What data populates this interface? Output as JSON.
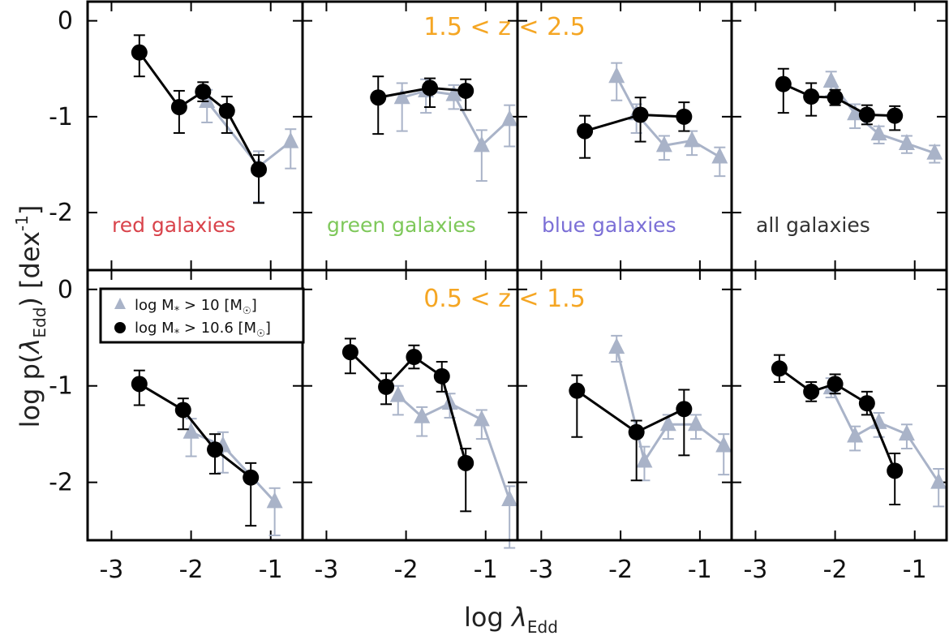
{
  "figure": {
    "ylabel_main": "log p(",
    "ylabel_lambda": "λ",
    "ylabel_sub": "Edd",
    "ylabel_close": ") [dex",
    "ylabel_sup": "-1",
    "ylabel_end": "]",
    "xlabel_main": "log ",
    "xlabel_lambda": "λ",
    "xlabel_sub": "Edd",
    "row_labels": [
      "1.5 < z < 2.5",
      "0.5 < z < 1.5"
    ],
    "legend": [
      {
        "marker": "triangle",
        "main": "log M",
        "sub": "*",
        "rest": " > 10 [M",
        "sun": "☉",
        "close": "]"
      },
      {
        "marker": "circle",
        "main": "log M",
        "sub": "*",
        "rest": " > 10.6 [M",
        "sun": "☉",
        "close": "]"
      }
    ],
    "colors": {
      "black_series": "#000000",
      "grey_series": "#a9b3c8",
      "range_label": "#f5a623"
    }
  },
  "chart_data": [
    {
      "type": "line",
      "row": 0,
      "col": 0,
      "panel_label": "red galaxies",
      "label_color": "#d9434b",
      "xlim": [
        -3.3,
        -0.6
      ],
      "ylim": [
        -2.6,
        0.2
      ],
      "xticks": [
        -3,
        -2,
        -1
      ],
      "yticks": [
        0,
        -1,
        -2
      ],
      "show_xticklabels": false,
      "show_yticklabels": true,
      "series": [
        {
          "name": "log M* > 10.6",
          "marker": "circle",
          "color": "#000000",
          "points": [
            {
              "x": -2.65,
              "y": -0.33,
              "err": [
                0.18,
                0.25
              ]
            },
            {
              "x": -2.15,
              "y": -0.9,
              "err": [
                0.17,
                0.27
              ]
            },
            {
              "x": -1.85,
              "y": -0.74,
              "err": [
                0.1,
                0.1
              ]
            },
            {
              "x": -1.55,
              "y": -0.94,
              "err": [
                0.15,
                0.23
              ]
            },
            {
              "x": -1.15,
              "y": -1.55,
              "err": [
                0.15,
                0.35
              ]
            }
          ]
        },
        {
          "name": "log M* > 10",
          "marker": "triangle",
          "color": "#a9b3c8",
          "points": [
            {
              "x": -1.8,
              "y": -0.84,
              "err": [
                0.12,
                0.22
              ]
            },
            {
              "x": -1.15,
              "y": -1.52,
              "err": [
                0.16,
                0.37
              ]
            },
            {
              "x": -0.75,
              "y": -1.26,
              "err": [
                0.13,
                0.28
              ]
            }
          ]
        }
      ]
    },
    {
      "type": "line",
      "row": 0,
      "col": 1,
      "panel_label": "green galaxies",
      "label_color": "#7ec85a",
      "xlim": [
        -3.3,
        -0.6
      ],
      "ylim": [
        -2.6,
        0.2
      ],
      "xticks": [
        -3,
        -2,
        -1
      ],
      "yticks": [
        0,
        -1,
        -2
      ],
      "show_xticklabels": false,
      "show_yticklabels": false,
      "series": [
        {
          "name": "log M* > 10.6",
          "marker": "circle",
          "color": "#000000",
          "points": [
            {
              "x": -2.35,
              "y": -0.8,
              "err": [
                0.22,
                0.38
              ]
            },
            {
              "x": -1.7,
              "y": -0.7,
              "err": [
                0.1,
                0.2
              ]
            },
            {
              "x": -1.25,
              "y": -0.73,
              "err": [
                0.12,
                0.2
              ]
            }
          ]
        },
        {
          "name": "log M* > 10",
          "marker": "triangle",
          "color": "#a9b3c8",
          "points": [
            {
              "x": -2.05,
              "y": -0.8,
              "err": [
                0.15,
                0.35
              ]
            },
            {
              "x": -1.75,
              "y": -0.73,
              "err": [
                0.12,
                0.23
              ]
            },
            {
              "x": -1.4,
              "y": -0.77,
              "err": [
                0.1,
                0.15
              ]
            },
            {
              "x": -1.05,
              "y": -1.3,
              "err": [
                0.16,
                0.37
              ]
            },
            {
              "x": -0.7,
              "y": -1.03,
              "err": [
                0.15,
                0.28
              ]
            }
          ]
        }
      ]
    },
    {
      "type": "line",
      "row": 0,
      "col": 2,
      "panel_label": "blue galaxies",
      "label_color": "#7b6fd6",
      "xlim": [
        -3.3,
        -0.6
      ],
      "ylim": [
        -2.6,
        0.2
      ],
      "xticks": [
        -3,
        -2,
        -1
      ],
      "yticks": [
        0,
        -1,
        -2
      ],
      "show_xticklabels": false,
      "show_yticklabels": false,
      "series": [
        {
          "name": "log M* > 10.6",
          "marker": "circle",
          "color": "#000000",
          "points": [
            {
              "x": -2.45,
              "y": -1.15,
              "err": [
                0.16,
                0.28
              ]
            },
            {
              "x": -1.75,
              "y": -0.98,
              "err": [
                0.18,
                0.28
              ]
            },
            {
              "x": -1.2,
              "y": -1.0,
              "err": [
                0.15,
                0.15
              ]
            }
          ]
        },
        {
          "name": "log M* > 10",
          "marker": "triangle",
          "color": "#a9b3c8",
          "points": [
            {
              "x": -2.05,
              "y": -0.58,
              "err": [
                0.14,
                0.25
              ]
            },
            {
              "x": -1.8,
              "y": -0.97,
              "err": [
                0.1,
                0.2
              ]
            },
            {
              "x": -1.45,
              "y": -1.3,
              "err": [
                0.1,
                0.15
              ]
            },
            {
              "x": -1.1,
              "y": -1.25,
              "err": [
                0.1,
                0.15
              ]
            },
            {
              "x": -0.75,
              "y": -1.42,
              "err": [
                0.1,
                0.2
              ]
            }
          ]
        }
      ]
    },
    {
      "type": "line",
      "row": 0,
      "col": 3,
      "panel_label": "all galaxies",
      "label_color": "#333333",
      "xlim": [
        -3.3,
        -0.6
      ],
      "ylim": [
        -2.6,
        0.2
      ],
      "xticks": [
        -3,
        -2,
        -1
      ],
      "yticks": [
        0,
        -1,
        -2
      ],
      "show_xticklabels": false,
      "show_yticklabels": false,
      "series": [
        {
          "name": "log M* > 10.6",
          "marker": "circle",
          "color": "#000000",
          "points": [
            {
              "x": -2.65,
              "y": -0.66,
              "err": [
                0.16,
                0.3
              ]
            },
            {
              "x": -2.3,
              "y": -0.79,
              "err": [
                0.14,
                0.2
              ]
            },
            {
              "x": -2.0,
              "y": -0.8,
              "err": [
                0.08,
                0.08
              ]
            },
            {
              "x": -1.6,
              "y": -0.98,
              "err": [
                0.1,
                0.1
              ]
            },
            {
              "x": -1.25,
              "y": -0.99,
              "err": [
                0.1,
                0.15
              ]
            }
          ]
        },
        {
          "name": "log M* > 10",
          "marker": "triangle",
          "color": "#a9b3c8",
          "points": [
            {
              "x": -2.05,
              "y": -0.63,
              "err": [
                0.1,
                0.15
              ]
            },
            {
              "x": -1.75,
              "y": -0.97,
              "err": [
                0.1,
                0.15
              ]
            },
            {
              "x": -1.45,
              "y": -1.18,
              "err": [
                0.08,
                0.1
              ]
            },
            {
              "x": -1.1,
              "y": -1.28,
              "err": [
                0.08,
                0.1
              ]
            },
            {
              "x": -0.75,
              "y": -1.38,
              "err": [
                0.08,
                0.1
              ]
            }
          ]
        }
      ]
    },
    {
      "type": "line",
      "row": 1,
      "col": 0,
      "panel_label": "",
      "label_color": "#d9434b",
      "xlim": [
        -3.3,
        -0.6
      ],
      "ylim": [
        -2.6,
        0.2
      ],
      "xticks": [
        -3,
        -2,
        -1
      ],
      "yticks": [
        0,
        -1,
        -2
      ],
      "show_xticklabels": true,
      "show_yticklabels": true,
      "series": [
        {
          "name": "log M* > 10.6",
          "marker": "circle",
          "color": "#000000",
          "points": [
            {
              "x": -2.65,
              "y": -0.98,
              "err": [
                0.14,
                0.22
              ]
            },
            {
              "x": -2.1,
              "y": -1.25,
              "err": [
                0.12,
                0.2
              ]
            },
            {
              "x": -1.7,
              "y": -1.66,
              "err": [
                0.16,
                0.25
              ]
            },
            {
              "x": -1.25,
              "y": -1.95,
              "err": [
                0.15,
                0.5
              ]
            }
          ]
        },
        {
          "name": "log M* > 10",
          "marker": "triangle",
          "color": "#a9b3c8",
          "points": [
            {
              "x": -2.0,
              "y": -1.48,
              "err": [
                0.14,
                0.25
              ]
            },
            {
              "x": -1.6,
              "y": -1.62,
              "err": [
                0.14,
                0.28
              ]
            },
            {
              "x": -0.95,
              "y": -2.2,
              "err": [
                0.14,
                0.35
              ]
            }
          ]
        }
      ]
    },
    {
      "type": "line",
      "row": 1,
      "col": 1,
      "panel_label": "",
      "label_color": "#7ec85a",
      "xlim": [
        -3.3,
        -0.6
      ],
      "ylim": [
        -2.6,
        0.2
      ],
      "xticks": [
        -3,
        -2,
        -1
      ],
      "yticks": [
        0,
        -1,
        -2
      ],
      "show_xticklabels": true,
      "show_yticklabels": false,
      "series": [
        {
          "name": "log M* > 10.6",
          "marker": "circle",
          "color": "#000000",
          "points": [
            {
              "x": -2.7,
              "y": -0.65,
              "err": [
                0.14,
                0.22
              ]
            },
            {
              "x": -2.25,
              "y": -1.01,
              "err": [
                0.14,
                0.18
              ]
            },
            {
              "x": -1.9,
              "y": -0.7,
              "err": [
                0.12,
                0.12
              ]
            },
            {
              "x": -1.55,
              "y": -0.9,
              "err": [
                0.15,
                0.16
              ]
            },
            {
              "x": -1.25,
              "y": -1.8,
              "err": [
                0.15,
                0.5
              ]
            }
          ]
        },
        {
          "name": "log M* > 10",
          "marker": "triangle",
          "color": "#a9b3c8",
          "points": [
            {
              "x": -2.1,
              "y": -1.1,
              "err": [
                0.1,
                0.2
              ]
            },
            {
              "x": -1.8,
              "y": -1.32,
              "err": [
                0.1,
                0.2
              ]
            },
            {
              "x": -1.45,
              "y": -1.18,
              "err": [
                0.1,
                0.15
              ]
            },
            {
              "x": -1.05,
              "y": -1.35,
              "err": [
                0.1,
                0.2
              ]
            },
            {
              "x": -0.7,
              "y": -2.18,
              "err": [
                0.14,
                0.5
              ]
            }
          ]
        }
      ]
    },
    {
      "type": "line",
      "row": 1,
      "col": 2,
      "panel_label": "",
      "label_color": "#7b6fd6",
      "xlim": [
        -3.3,
        -0.6
      ],
      "ylim": [
        -2.6,
        0.2
      ],
      "xticks": [
        -3,
        -2,
        -1
      ],
      "yticks": [
        0,
        -1,
        -2
      ],
      "show_xticklabels": true,
      "show_yticklabels": false,
      "series": [
        {
          "name": "log M* > 10.6",
          "marker": "circle",
          "color": "#000000",
          "points": [
            {
              "x": -2.55,
              "y": -1.05,
              "err": [
                0.16,
                0.48
              ]
            },
            {
              "x": -1.8,
              "y": -1.48,
              "err": [
                0.12,
                0.5
              ]
            },
            {
              "x": -1.2,
              "y": -1.24,
              "err": [
                0.2,
                0.48
              ]
            }
          ]
        },
        {
          "name": "log M* > 10",
          "marker": "triangle",
          "color": "#a9b3c8",
          "points": [
            {
              "x": -2.05,
              "y": -0.6,
              "err": [
                0.12,
                0.15
              ]
            },
            {
              "x": -1.7,
              "y": -1.78,
              "err": [
                0.15,
                0.2
              ]
            },
            {
              "x": -1.4,
              "y": -1.4,
              "err": [
                0.1,
                0.15
              ]
            },
            {
              "x": -1.05,
              "y": -1.4,
              "err": [
                0.1,
                0.15
              ]
            },
            {
              "x": -0.7,
              "y": -1.62,
              "err": [
                0.12,
                0.3
              ]
            }
          ]
        }
      ]
    },
    {
      "type": "line",
      "row": 1,
      "col": 3,
      "panel_label": "",
      "label_color": "#333333",
      "xlim": [
        -3.3,
        -0.6
      ],
      "ylim": [
        -2.6,
        0.2
      ],
      "xticks": [
        -3,
        -2,
        -1
      ],
      "yticks": [
        0,
        -1,
        -2
      ],
      "show_xticklabels": true,
      "show_yticklabels": false,
      "series": [
        {
          "name": "log M* > 10.6",
          "marker": "circle",
          "color": "#000000",
          "points": [
            {
              "x": -2.7,
              "y": -0.82,
              "err": [
                0.14,
                0.14
              ]
            },
            {
              "x": -2.3,
              "y": -1.06,
              "err": [
                0.1,
                0.1
              ]
            },
            {
              "x": -2.0,
              "y": -0.98,
              "err": [
                0.1,
                0.1
              ]
            },
            {
              "x": -1.6,
              "y": -1.18,
              "err": [
                0.12,
                0.12
              ]
            },
            {
              "x": -1.25,
              "y": -1.88,
              "err": [
                0.18,
                0.35
              ]
            }
          ]
        },
        {
          "name": "log M* > 10",
          "marker": "triangle",
          "color": "#a9b3c8",
          "points": [
            {
              "x": -2.05,
              "y": -1.02,
              "err": [
                0.1,
                0.1
              ]
            },
            {
              "x": -1.75,
              "y": -1.52,
              "err": [
                0.1,
                0.15
              ]
            },
            {
              "x": -1.45,
              "y": -1.38,
              "err": [
                0.1,
                0.15
              ]
            },
            {
              "x": -1.1,
              "y": -1.5,
              "err": [
                0.1,
                0.15
              ]
            },
            {
              "x": -0.7,
              "y": -2.0,
              "err": [
                0.14,
                0.25
              ]
            }
          ]
        }
      ]
    }
  ]
}
